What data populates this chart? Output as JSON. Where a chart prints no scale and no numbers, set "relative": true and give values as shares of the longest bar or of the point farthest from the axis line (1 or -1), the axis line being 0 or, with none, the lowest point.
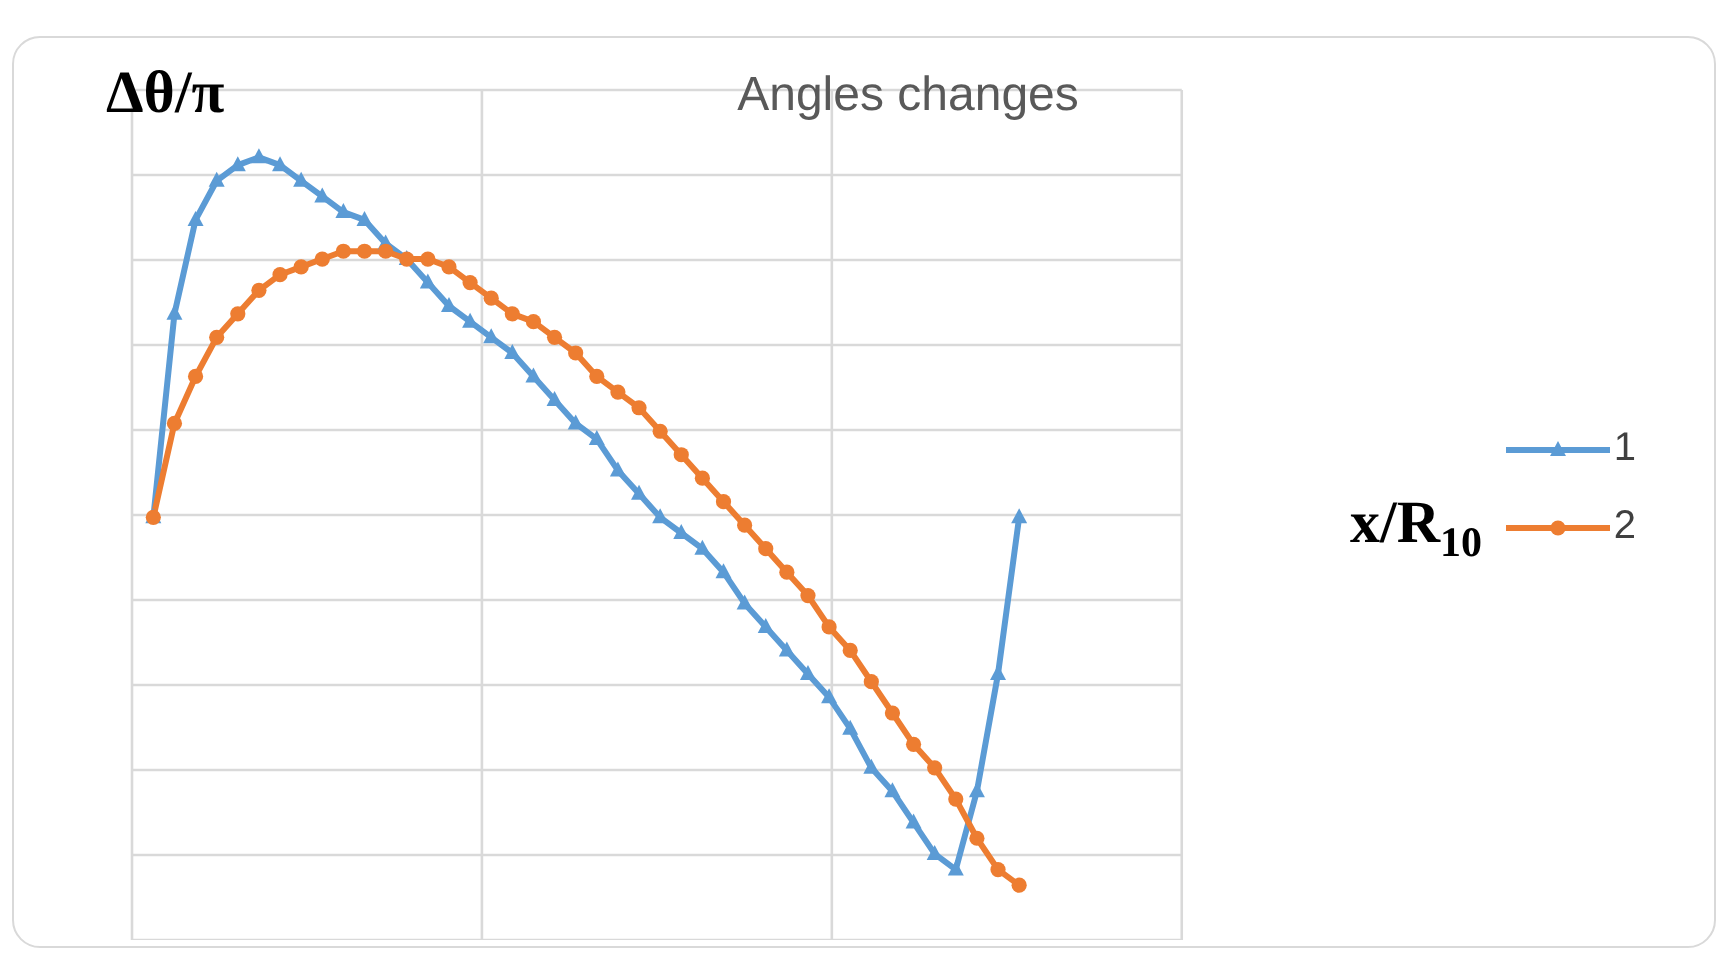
{
  "chart_data": {
    "type": "line",
    "title": "Angles changes",
    "annotations": [
      "x/R$_{10}$"
    ],
    "ylabel": "Δθ/π",
    "relative": true,
    "grid": true,
    "legend": "right",
    "line_style": "solid",
    "categories": [
      null,
      null,
      null,
      null,
      null,
      null,
      null,
      null,
      null,
      null,
      null,
      null,
      null,
      null,
      null,
      null,
      null,
      null,
      null,
      null,
      null,
      null,
      null,
      null,
      null,
      null,
      null,
      null,
      null,
      null,
      null,
      null,
      null,
      null,
      null,
      null,
      null,
      null,
      null,
      null,
      null,
      null
    ],
    "series": [
      {
        "name": "1",
        "color": "#5b9bd5",
        "marker": "triangle",
        "values": [
          0.54,
          0.8,
          0.92,
          0.97,
          0.99,
          1.0,
          0.99,
          0.97,
          0.95,
          0.93,
          0.92,
          0.89,
          0.87,
          0.84,
          0.81,
          0.79,
          0.77,
          0.75,
          0.72,
          0.69,
          0.66,
          0.64,
          0.6,
          0.57,
          0.54,
          0.52,
          0.5,
          0.47,
          0.43,
          0.4,
          0.37,
          0.34,
          0.31,
          0.27,
          0.22,
          0.19,
          0.15,
          0.11,
          0.09,
          0.19,
          0.34,
          0.54
        ]
      },
      {
        "name": "2",
        "color": "#ed7d31",
        "marker": "circle",
        "values": [
          0.54,
          0.66,
          0.72,
          0.77,
          0.8,
          0.83,
          0.85,
          0.86,
          0.87,
          0.88,
          0.88,
          0.88,
          0.87,
          0.87,
          0.86,
          0.84,
          0.82,
          0.8,
          0.79,
          0.77,
          0.75,
          0.72,
          0.7,
          0.68,
          0.65,
          0.62,
          0.59,
          0.56,
          0.53,
          0.5,
          0.47,
          0.44,
          0.4,
          0.37,
          0.33,
          0.29,
          0.25,
          0.22,
          0.18,
          0.13,
          0.09,
          0.07
        ]
      }
    ]
  }
}
